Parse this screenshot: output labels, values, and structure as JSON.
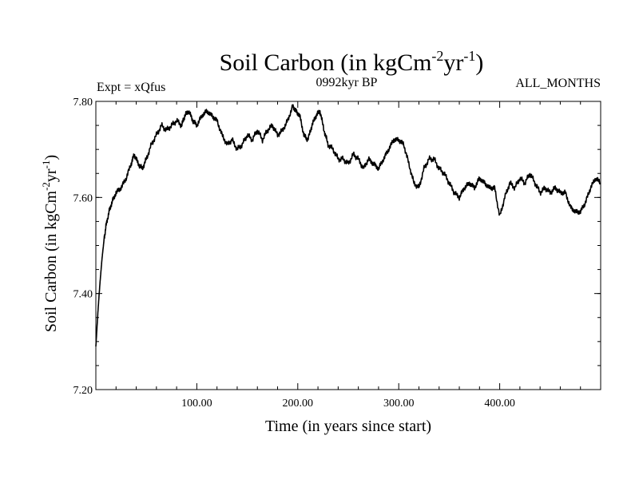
{
  "header": {
    "title_main": "Soil Carbon (in kgCm",
    "title_exp1": "-2",
    "title_mid": "yr",
    "title_exp2": "-1",
    "title_end": ")",
    "expt": "Expt = xQfus",
    "period": "0992kyr BP",
    "months": "ALL_MONTHS"
  },
  "chart_data": {
    "type": "line",
    "title": "Soil Carbon (in kgCm-2yr-1)",
    "xlabel": "Time (in years since start)",
    "ylabel": "Soil Carbon (in kgCm-2yr-1)",
    "xlim": [
      0,
      500
    ],
    "ylim": [
      7.2,
      7.8
    ],
    "x_ticks": [
      100,
      200,
      300,
      400
    ],
    "x_tick_labels": [
      "100.00",
      "200.00",
      "300.00",
      "400.00"
    ],
    "y_ticks": [
      7.2,
      7.4,
      7.6,
      7.8
    ],
    "y_tick_labels": [
      "7.20",
      "7.40",
      "7.60",
      "7.80"
    ],
    "series": [
      {
        "name": "Soil Carbon",
        "color": "#000000",
        "x": [
          0,
          2,
          4,
          6,
          8,
          10,
          13,
          16,
          20,
          25,
          30,
          35,
          38,
          42,
          46,
          50,
          55,
          60,
          65,
          70,
          75,
          80,
          85,
          88,
          92,
          96,
          100,
          105,
          110,
          115,
          120,
          125,
          130,
          135,
          140,
          145,
          150,
          155,
          160,
          165,
          170,
          175,
          180,
          185,
          190,
          195,
          198,
          202,
          206,
          210,
          214,
          218,
          222,
          226,
          230,
          235,
          240,
          245,
          250,
          255,
          260,
          265,
          270,
          275,
          280,
          285,
          290,
          295,
          300,
          305,
          310,
          315,
          320,
          325,
          330,
          335,
          340,
          345,
          350,
          355,
          360,
          365,
          370,
          375,
          380,
          385,
          390,
          395,
          400,
          405,
          410,
          415,
          420,
          425,
          430,
          435,
          440,
          445,
          450,
          455,
          460,
          465,
          470,
          475,
          480,
          485,
          490,
          495,
          500
        ],
        "values": [
          7.29,
          7.36,
          7.42,
          7.47,
          7.51,
          7.54,
          7.57,
          7.59,
          7.61,
          7.62,
          7.64,
          7.67,
          7.69,
          7.67,
          7.66,
          7.68,
          7.71,
          7.73,
          7.75,
          7.74,
          7.75,
          7.76,
          7.75,
          7.77,
          7.78,
          7.76,
          7.75,
          7.77,
          7.78,
          7.77,
          7.76,
          7.73,
          7.71,
          7.72,
          7.7,
          7.71,
          7.73,
          7.72,
          7.74,
          7.72,
          7.74,
          7.75,
          7.73,
          7.74,
          7.76,
          7.79,
          7.78,
          7.77,
          7.73,
          7.72,
          7.75,
          7.77,
          7.78,
          7.74,
          7.71,
          7.7,
          7.68,
          7.68,
          7.67,
          7.69,
          7.68,
          7.66,
          7.68,
          7.67,
          7.66,
          7.68,
          7.7,
          7.72,
          7.72,
          7.71,
          7.67,
          7.63,
          7.62,
          7.66,
          7.68,
          7.68,
          7.66,
          7.65,
          7.63,
          7.61,
          7.6,
          7.62,
          7.63,
          7.62,
          7.64,
          7.63,
          7.62,
          7.62,
          7.56,
          7.6,
          7.63,
          7.62,
          7.64,
          7.63,
          7.65,
          7.63,
          7.61,
          7.62,
          7.61,
          7.62,
          7.61,
          7.61,
          7.58,
          7.57,
          7.57,
          7.59,
          7.62,
          7.64,
          7.63
        ]
      }
    ]
  }
}
